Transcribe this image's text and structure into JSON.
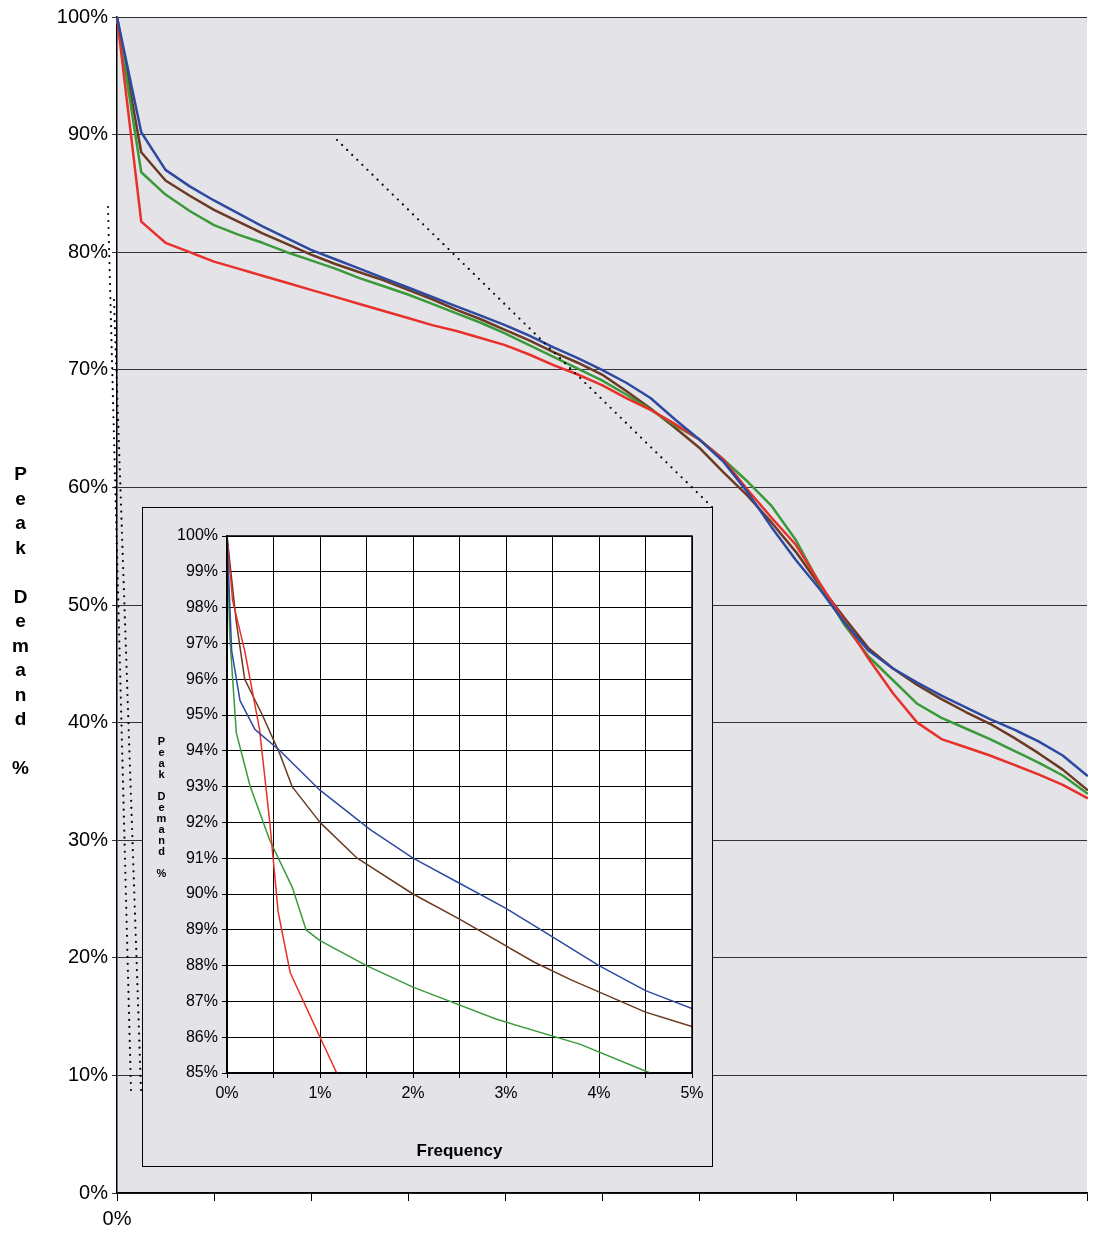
{
  "chart_data": [
    {
      "type": "line",
      "ylabel": "Peak Demand %",
      "ylim": [
        0,
        100
      ],
      "grid": "y",
      "marker": "none",
      "line_style": "solid",
      "categories": [
        "0%",
        null,
        null,
        null,
        null,
        null,
        null,
        null,
        null,
        null,
        null,
        null,
        null,
        null,
        null,
        null,
        null,
        null,
        null,
        null,
        null,
        null,
        null,
        null,
        null,
        null,
        null,
        null,
        null,
        null,
        null,
        null,
        null,
        null,
        null,
        null,
        null,
        null,
        null,
        null,
        null
      ],
      "yticks": [
        {
          "value": 0,
          "label": "0%"
        },
        {
          "value": 10,
          "label": "10%"
        },
        {
          "value": 20,
          "label": "20%"
        },
        {
          "value": 30,
          "label": "30%"
        },
        {
          "value": 40,
          "label": "40%"
        },
        {
          "value": 50,
          "label": "50%"
        },
        {
          "value": 60,
          "label": "60%"
        },
        {
          "value": 70,
          "label": "70%"
        },
        {
          "value": 80,
          "label": "80%"
        },
        {
          "value": 90,
          "label": "90%"
        },
        {
          "value": 100,
          "label": "100%"
        }
      ],
      "series": [
        {
          "color": "#2e4aa0",
          "values": [
            100,
            90.2,
            87,
            85.6,
            84.4,
            83.3,
            82.2,
            81.2,
            80.2,
            79.4,
            78.6,
            77.8,
            77,
            76.2,
            75.4,
            74.6,
            73.8,
            72.9,
            71.9,
            71,
            70,
            68.9,
            67.6,
            65.8,
            64.1,
            62.2,
            59.6,
            56.6,
            53.8,
            51.3,
            48.5,
            46.1,
            44.6,
            43.4,
            42.3,
            41.3,
            40.3,
            39.4,
            38.4,
            37.2,
            35.5
          ]
        },
        {
          "color": "#e8302a",
          "values": [
            100,
            82.6,
            80.8,
            80,
            79.2,
            78.6,
            78,
            77.4,
            76.8,
            76.2,
            75.6,
            75,
            74.4,
            73.8,
            73.3,
            72.7,
            72.1,
            71.3,
            70.4,
            69.6,
            68.7,
            67.6,
            66.6,
            65.4,
            64.1,
            62.4,
            59.8,
            57.4,
            55.1,
            51.8,
            48.6,
            45.4,
            42.5,
            40,
            38.6,
            37.9,
            37.2,
            36.4,
            35.6,
            34.7,
            33.6
          ]
        },
        {
          "color": "#3a9a3a",
          "values": [
            100,
            86.8,
            84.9,
            83.5,
            82.3,
            81.5,
            80.8,
            80,
            79.3,
            78.6,
            77.8,
            77.1,
            76.4,
            75.6,
            74.8,
            74,
            73.1,
            72.1,
            71.1,
            70.1,
            69.1,
            67.9,
            66.6,
            65.3,
            64.1,
            62.4,
            60.5,
            58.4,
            55.5,
            51.7,
            48.3,
            45.6,
            43.6,
            41.6,
            40.4,
            39.5,
            38.6,
            37.6,
            36.6,
            35.5,
            34
          ]
        },
        {
          "color": "#6b3a22",
          "values": [
            100,
            88.5,
            86.1,
            84.8,
            83.6,
            82.6,
            81.6,
            80.7,
            79.8,
            79,
            78.3,
            77.6,
            76.8,
            76,
            75.1,
            74.3,
            73.4,
            72.5,
            71.5,
            70.6,
            69.6,
            68.2,
            66.7,
            65.1,
            63.4,
            61.3,
            59.3,
            57,
            54.5,
            51.6,
            48.9,
            46.3,
            44.6,
            43.2,
            42,
            40.9,
            39.9,
            38.7,
            37.4,
            36,
            34.3
          ]
        }
      ]
    },
    {
      "type": "line",
      "xlabel": "Frequency",
      "ylabel": "Peak Demand %",
      "xlim": [
        0,
        5
      ],
      "ylim": [
        85,
        100
      ],
      "grid": true,
      "marker": "none",
      "line_style": "solid",
      "xticks": [
        {
          "value": 0,
          "label": "0%"
        },
        {
          "value": 0.5,
          "label": null
        },
        {
          "value": 1,
          "label": "1%"
        },
        {
          "value": 1.5,
          "label": null
        },
        {
          "value": 2,
          "label": "2%"
        },
        {
          "value": 2.5,
          "label": null
        },
        {
          "value": 3,
          "label": "3%"
        },
        {
          "value": 3.5,
          "label": null
        },
        {
          "value": 4,
          "label": "4%"
        },
        {
          "value": 4.5,
          "label": null
        },
        {
          "value": 5,
          "label": "5%"
        }
      ],
      "yticks": [
        {
          "value": 85,
          "label": "85%"
        },
        {
          "value": 86,
          "label": "86%"
        },
        {
          "value": 87,
          "label": "87%"
        },
        {
          "value": 88,
          "label": "88%"
        },
        {
          "value": 89,
          "label": "89%"
        },
        {
          "value": 90,
          "label": "90%"
        },
        {
          "value": 91,
          "label": "91%"
        },
        {
          "value": 92,
          "label": "92%"
        },
        {
          "value": 93,
          "label": "93%"
        },
        {
          "value": 94,
          "label": "94%"
        },
        {
          "value": 95,
          "label": "95%"
        },
        {
          "value": 96,
          "label": "96%"
        },
        {
          "value": 97,
          "label": "97%"
        },
        {
          "value": 98,
          "label": "98%"
        },
        {
          "value": 99,
          "label": "99%"
        },
        {
          "value": 100,
          "label": "100%"
        }
      ],
      "series": [
        {
          "color": "#2e4aa0",
          "x": [
            0,
            0.05,
            0.14,
            0.3,
            0.57,
            1,
            1.54,
            2,
            2.5,
            3,
            3.5,
            4,
            4.5,
            5
          ],
          "values": [
            100,
            96.8,
            95.4,
            94.6,
            94,
            92.9,
            91.8,
            91,
            90.3,
            89.6,
            88.8,
            88,
            87.3,
            86.8
          ]
        },
        {
          "color": "#e8302a",
          "x": [
            0,
            0.06,
            0.19,
            0.35,
            0.46,
            0.55,
            0.68,
            1,
            1.18
          ],
          "values": [
            100,
            98.2,
            96.8,
            94.6,
            92,
            89.5,
            87.8,
            86,
            85
          ]
        },
        {
          "color": "#3a9a3a",
          "x": [
            0,
            0.03,
            0.1,
            0.25,
            0.46,
            0.7,
            0.85,
            1,
            1.5,
            2,
            2.9,
            3.8,
            4.55
          ],
          "values": [
            100,
            97.2,
            94.5,
            93,
            91.5,
            90.2,
            89,
            88.7,
            88,
            87.4,
            86.5,
            85.8,
            85
          ]
        },
        {
          "color": "#6b3a22",
          "x": [
            0,
            0.1,
            0.19,
            0.38,
            0.57,
            0.7,
            1,
            1.4,
            2,
            2.5,
            3.3,
            3.7,
            4.5,
            5
          ],
          "values": [
            100,
            97.6,
            96,
            95,
            93.9,
            93,
            92,
            91,
            90,
            89.3,
            88.1,
            87.6,
            86.7,
            86.3
          ]
        }
      ]
    }
  ]
}
